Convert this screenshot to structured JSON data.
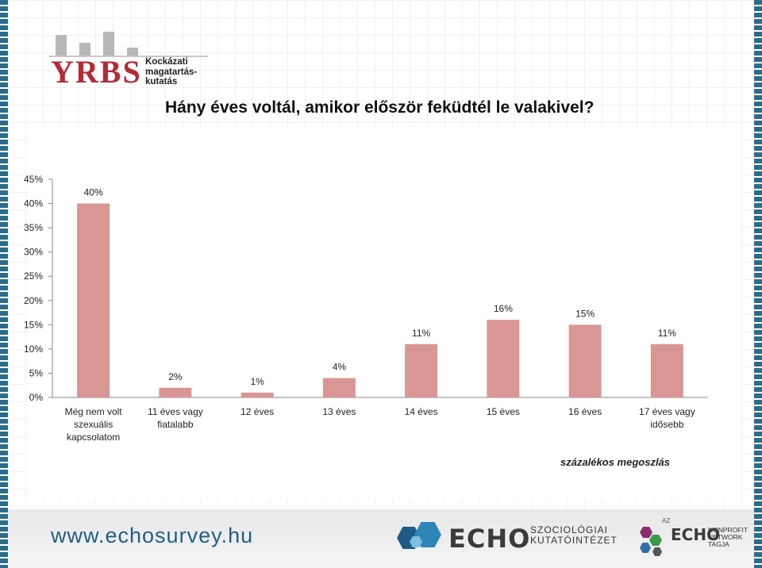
{
  "logo": {
    "name": "YRBS",
    "subtitle_lines": [
      "Kockázati",
      "magatartás-",
      "kutatás"
    ]
  },
  "chart_data": {
    "type": "bar",
    "title": "Hány éves voltál, amikor először feküdtél le valakivel?",
    "categories": [
      [
        "Még nem volt",
        "szexuális",
        "kapcsolatom"
      ],
      [
        "11 éves vagy",
        "fiatalabb"
      ],
      [
        "12 éves"
      ],
      [
        "13 éves"
      ],
      [
        "14 éves"
      ],
      [
        "15 éves"
      ],
      [
        "16 éves"
      ],
      [
        "17 éves vagy",
        "idősebb"
      ]
    ],
    "values": [
      40,
      2,
      1,
      4,
      11,
      16,
      15,
      11
    ],
    "data_labels": [
      "40%",
      "2%",
      "1%",
      "4%",
      "11%",
      "16%",
      "15%",
      "11%"
    ],
    "ylim": [
      0,
      45
    ],
    "yticks": [
      0,
      5,
      10,
      15,
      20,
      25,
      30,
      35,
      40,
      45
    ],
    "ytick_labels": [
      "0%",
      "5%",
      "10%",
      "15%",
      "20%",
      "25%",
      "30%",
      "35%",
      "40%",
      "45%"
    ],
    "grid": false,
    "bar_color": "#d99694"
  },
  "note": "százalékos megoszlás",
  "footer": {
    "url": "www.echosurvey.hu",
    "echo_name": "ECHO",
    "echo_sub_lines": [
      "SZOCIOLÓGIAI",
      "KUTATÓINTÉZET"
    ],
    "echo2_prefix": "AZ",
    "echo2_name": "ECHO",
    "echo2_sub_lines": [
      "NONPROFIT",
      "NETWORK",
      "TAGJA"
    ]
  }
}
